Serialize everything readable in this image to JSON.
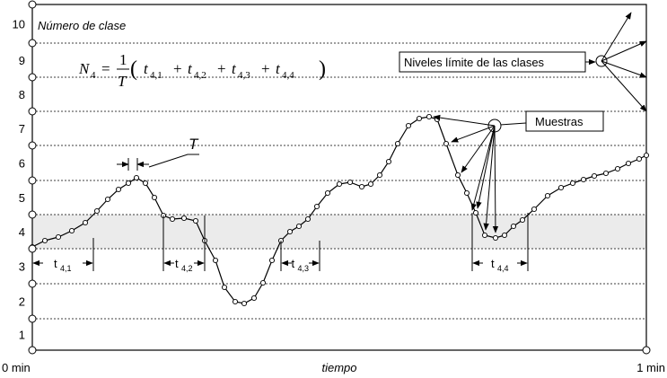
{
  "axis": {
    "y_label": "Número de clase",
    "x_label": "tiempo",
    "x_start": "0 min",
    "x_end": "1 min",
    "class_numbers": [
      1,
      2,
      3,
      4,
      5,
      6,
      7,
      8,
      9,
      10
    ]
  },
  "formula": {
    "lhs": "N",
    "lhs_sub": "4",
    "eq": "=",
    "num": "1",
    "den": "T",
    "open": "(",
    "close": ")",
    "plus": "+",
    "terms": [
      {
        "t": "t",
        "sub": "4,1"
      },
      {
        "t": "t",
        "sub": "4,2"
      },
      {
        "t": "t",
        "sub": "4,3"
      },
      {
        "t": "t",
        "sub": "4,4"
      }
    ]
  },
  "annotations": {
    "period": "T",
    "limits": "Niveles límite de las clases",
    "samples": "Muestras"
  }
}
